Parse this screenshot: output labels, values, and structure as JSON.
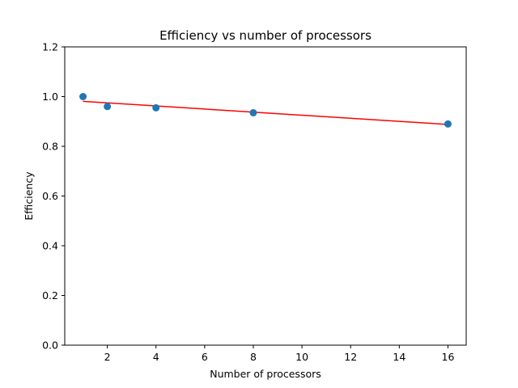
{
  "chart_data": {
    "type": "scatter",
    "title": "Efficiency vs number of processors",
    "xlabel": "Number of processors",
    "ylabel": "Efficiency",
    "xlim": [
      0.25,
      16.75
    ],
    "ylim": [
      0.0,
      1.2
    ],
    "xticks": [
      2,
      4,
      6,
      8,
      10,
      12,
      14,
      16
    ],
    "yticks": [
      0.0,
      0.2,
      0.4,
      0.6,
      0.8,
      1.0,
      1.2
    ],
    "xtick_labels": [
      "2",
      "4",
      "6",
      "8",
      "10",
      "12",
      "14",
      "16"
    ],
    "ytick_labels": [
      "0.0",
      "0.2",
      "0.4",
      "0.6",
      "0.8",
      "1.0",
      "1.2"
    ],
    "grid": false,
    "series": [
      {
        "kind": "scatter",
        "color": "#1f77b4",
        "points": [
          {
            "x": 1,
            "y": 1.0
          },
          {
            "x": 2,
            "y": 0.96
          },
          {
            "x": 4,
            "y": 0.955
          },
          {
            "x": 8,
            "y": 0.935
          },
          {
            "x": 16,
            "y": 0.89
          }
        ]
      },
      {
        "kind": "line",
        "color": "#ff0000",
        "points": [
          {
            "x": 1,
            "y": 0.981
          },
          {
            "x": 16,
            "y": 0.888
          }
        ]
      }
    ]
  }
}
